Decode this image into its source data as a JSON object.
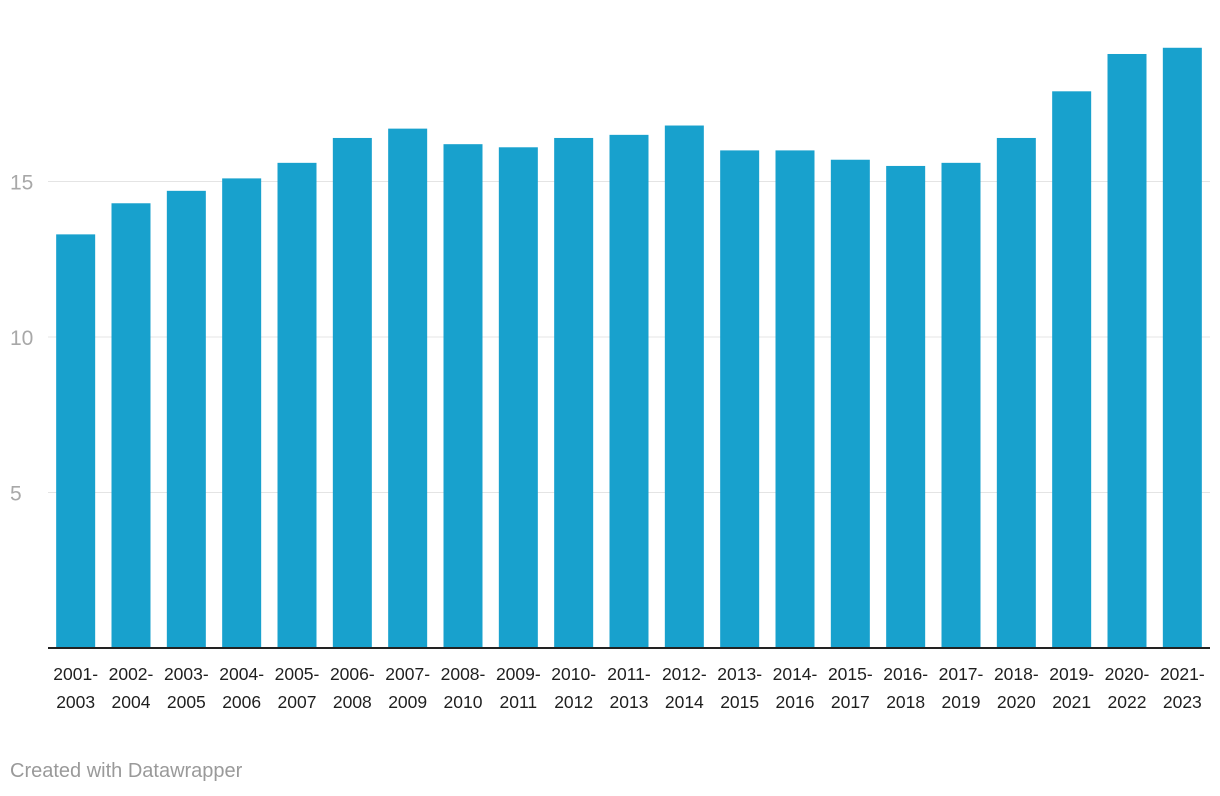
{
  "chart_data": {
    "type": "bar",
    "title": "",
    "xlabel": "",
    "ylabel": "",
    "ylim": [
      0,
      20
    ],
    "yticks": [
      5,
      10,
      15
    ],
    "grid": true,
    "bar_color": "#18a1cd",
    "categories": [
      [
        "2001-",
        "2003"
      ],
      [
        "2002-",
        "2004"
      ],
      [
        "2003-",
        "2005"
      ],
      [
        "2004-",
        "2006"
      ],
      [
        "2005-",
        "2007"
      ],
      [
        "2006-",
        "2008"
      ],
      [
        "2007-",
        "2009"
      ],
      [
        "2008-",
        "2010"
      ],
      [
        "2009-",
        "2011"
      ],
      [
        "2010-",
        "2012"
      ],
      [
        "2011-",
        "2013"
      ],
      [
        "2012-",
        "2014"
      ],
      [
        "2013-",
        "2015"
      ],
      [
        "2014-",
        "2016"
      ],
      [
        "2015-",
        "2017"
      ],
      [
        "2016-",
        "2018"
      ],
      [
        "2017-",
        "2019"
      ],
      [
        "2018-",
        "2020"
      ],
      [
        "2019-",
        "2021"
      ],
      [
        "2020-",
        "2022"
      ],
      [
        "2021-",
        "2023"
      ]
    ],
    "values": [
      13.3,
      14.3,
      14.7,
      15.1,
      15.6,
      16.4,
      16.7,
      16.2,
      16.1,
      16.4,
      16.5,
      16.8,
      16.0,
      16.0,
      15.7,
      15.5,
      15.6,
      16.4,
      17.9,
      19.1,
      19.3
    ]
  },
  "footer": {
    "credit": "Created with Datawrapper"
  }
}
